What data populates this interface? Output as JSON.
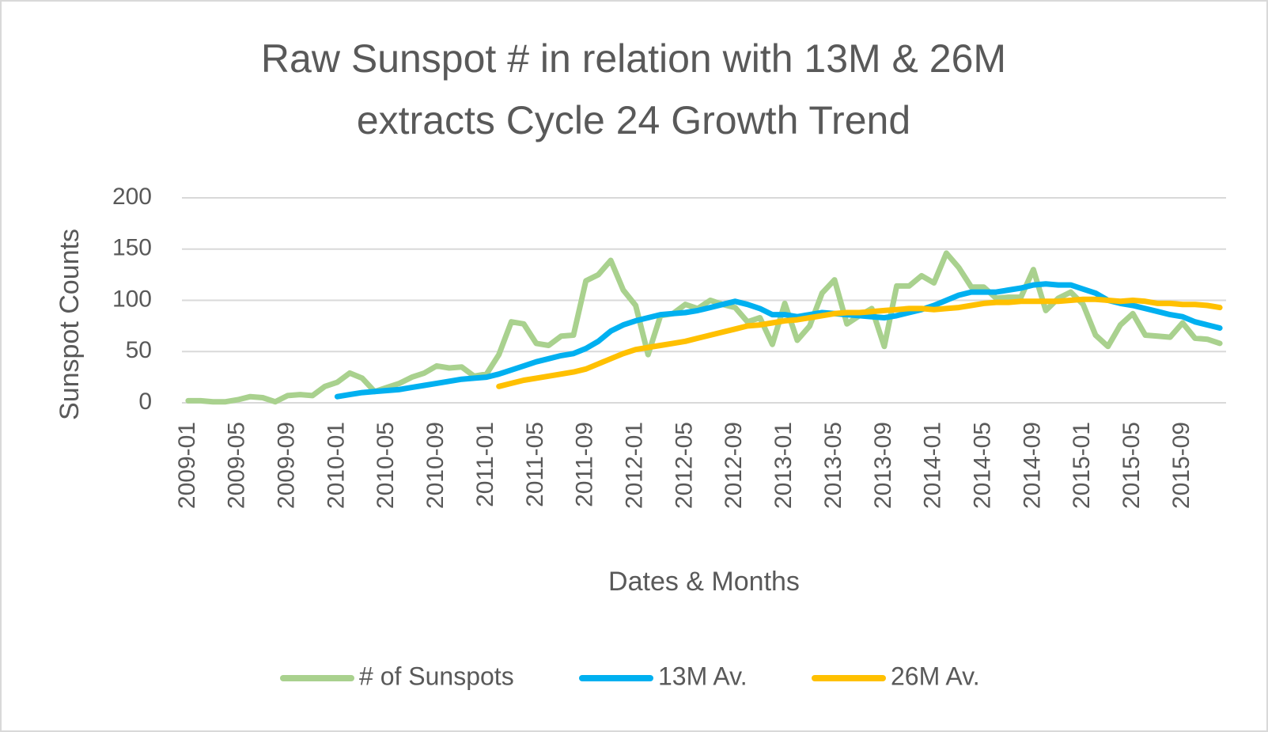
{
  "chart_data": {
    "type": "line",
    "title": [
      "Raw Sunspot # in relation with 13M & 26M",
      "extracts Cycle 24 Growth Trend"
    ],
    "x_label": "Dates & Months",
    "y_label": "Sunspot Counts",
    "categories": [
      "2009-01",
      null,
      null,
      null,
      "2009-05",
      null,
      null,
      null,
      "2009-09",
      null,
      null,
      null,
      "2010-01",
      null,
      null,
      null,
      "2010-05",
      null,
      null,
      null,
      "2010-09",
      null,
      null,
      null,
      "2011-01",
      null,
      null,
      null,
      "2011-05",
      null,
      null,
      null,
      "2011-09",
      null,
      null,
      null,
      "2012-01",
      null,
      null,
      null,
      "2012-05",
      null,
      null,
      null,
      "2012-09",
      null,
      null,
      null,
      "2013-01",
      null,
      null,
      null,
      "2013-05",
      null,
      null,
      null,
      "2013-09",
      null,
      null,
      null,
      "2014-01",
      null,
      null,
      null,
      "2014-05",
      null,
      null,
      null,
      "2014-09",
      null,
      null,
      null,
      "2015-01",
      null,
      null,
      null,
      "2015-05",
      null,
      null,
      null,
      "2015-09",
      null,
      null,
      null
    ],
    "series": [
      {
        "name": "# of Sunspots",
        "color": "#a9d18e",
        "values": [
          2,
          2,
          1,
          1,
          3,
          6,
          5,
          1,
          7,
          8,
          7,
          16,
          20,
          29,
          24,
          11,
          15,
          19,
          25,
          29,
          36,
          34,
          35,
          26,
          28,
          47,
          79,
          77,
          58,
          56,
          65,
          66,
          119,
          125,
          139,
          110,
          95,
          47,
          85,
          87,
          96,
          92,
          100,
          96,
          93,
          79,
          83,
          57,
          97,
          61,
          75,
          107,
          120,
          77,
          85,
          92,
          55,
          114,
          114,
          124,
          117,
          146,
          132,
          113,
          113,
          102,
          103,
          103,
          130,
          90,
          102,
          108,
          96,
          66,
          55,
          76,
          87,
          66,
          65,
          64,
          78,
          63,
          62,
          58
        ]
      },
      {
        "name": "13M Av.",
        "color": "#00b0f0",
        "values": [
          null,
          null,
          null,
          null,
          null,
          null,
          null,
          null,
          null,
          null,
          null,
          null,
          6,
          8,
          10,
          11,
          12,
          13,
          15,
          17,
          19,
          21,
          23,
          24,
          25,
          28,
          32,
          36,
          40,
          43,
          46,
          48,
          53,
          60,
          70,
          76,
          80,
          83,
          86,
          87,
          88,
          90,
          93,
          96,
          99,
          96,
          92,
          86,
          86,
          84,
          86,
          88,
          87,
          86,
          85,
          84,
          83,
          85,
          88,
          91,
          95,
          100,
          105,
          108,
          108,
          108,
          110,
          112,
          115,
          116,
          115,
          115,
          111,
          107,
          100,
          97,
          95,
          92,
          89,
          86,
          84,
          79,
          76,
          73
        ]
      },
      {
        "name": "26M Av.",
        "color": "#ffc000",
        "values": [
          null,
          null,
          null,
          null,
          null,
          null,
          null,
          null,
          null,
          null,
          null,
          null,
          null,
          null,
          null,
          null,
          null,
          null,
          null,
          null,
          null,
          null,
          null,
          null,
          null,
          16,
          19,
          22,
          24,
          26,
          28,
          30,
          33,
          38,
          43,
          48,
          52,
          54,
          56,
          58,
          60,
          63,
          66,
          69,
          72,
          75,
          76,
          78,
          80,
          81,
          83,
          85,
          87,
          88,
          88,
          89,
          90,
          91,
          92,
          92,
          91,
          92,
          93,
          95,
          97,
          98,
          98,
          99,
          99,
          99,
          99,
          100,
          101,
          101,
          100,
          99,
          100,
          99,
          97,
          97,
          96,
          96,
          95,
          93
        ]
      }
    ],
    "ylim": [
      0,
      200
    ],
    "yticks": [
      0,
      50,
      100,
      150,
      200
    ],
    "grid": true,
    "legend": "bottom"
  }
}
